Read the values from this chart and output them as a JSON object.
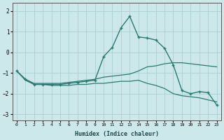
{
  "xlabel": "Humidex (Indice chaleur)",
  "background_color": "#cde8eb",
  "grid_color": "#aacfd4",
  "line_color": "#2a7a72",
  "x_ticks": [
    0,
    1,
    2,
    3,
    4,
    5,
    6,
    7,
    8,
    9,
    10,
    11,
    12,
    13,
    14,
    15,
    16,
    17,
    18,
    19,
    20,
    21,
    22,
    23
  ],
  "ylim": [
    -3.3,
    2.4
  ],
  "yticks": [
    -3,
    -2,
    -1,
    0,
    1,
    2
  ],
  "series": [
    {
      "x": [
        0,
        1,
        2,
        3,
        4,
        5,
        6,
        7,
        8,
        9,
        10,
        11,
        12,
        13,
        14,
        15,
        16,
        17,
        18,
        19,
        20,
        21,
        22,
        23
      ],
      "y": [
        -0.9,
        -1.3,
        -1.5,
        -1.5,
        -1.5,
        -1.5,
        -1.45,
        -1.4,
        -1.35,
        -1.3,
        -1.2,
        -1.15,
        -1.1,
        -1.05,
        -0.9,
        -0.7,
        -0.65,
        -0.55,
        -0.5,
        -0.5,
        -0.55,
        -0.6,
        -0.65,
        -0.7
      ],
      "marker": null,
      "lw": 0.9
    },
    {
      "x": [
        0,
        1,
        2,
        3,
        4,
        5,
        6,
        7,
        8,
        9,
        10,
        11,
        12,
        13,
        14,
        15,
        16,
        17,
        18,
        19,
        20,
        21,
        22,
        23
      ],
      "y": [
        -0.9,
        -1.35,
        -1.55,
        -1.55,
        -1.6,
        -1.6,
        -1.6,
        -1.55,
        -1.55,
        -1.5,
        -1.5,
        -1.45,
        -1.4,
        -1.4,
        -1.35,
        -1.5,
        -1.6,
        -1.75,
        -2.0,
        -2.1,
        -2.15,
        -2.2,
        -2.3,
        -2.4
      ],
      "marker": null,
      "lw": 0.9
    },
    {
      "x": [
        0,
        1,
        2,
        3,
        4,
        5,
        6,
        7,
        8,
        9,
        10,
        11,
        12,
        13,
        14,
        15,
        16,
        17,
        18,
        19,
        20,
        21,
        22,
        23
      ],
      "y": [
        -0.9,
        -1.3,
        -1.55,
        -1.55,
        -1.55,
        -1.55,
        -1.5,
        -1.45,
        -1.4,
        -1.35,
        -0.2,
        0.25,
        1.2,
        1.75,
        0.75,
        0.7,
        0.6,
        0.2,
        -0.6,
        -1.85,
        -2.0,
        -1.9,
        -1.95,
        -2.55
      ],
      "marker": "+",
      "lw": 1.0
    }
  ]
}
